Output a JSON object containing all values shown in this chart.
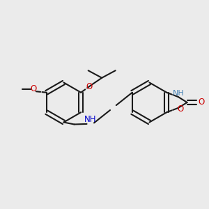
{
  "background_color": "#ebebeb",
  "bond_color": "#1a1a1a",
  "atom_colors": {
    "O": "#cc0000",
    "N": "#0000cc",
    "NH": "#4682b4",
    "C": "#1a1a1a"
  },
  "lw": 1.5,
  "fontsize": 8.5
}
